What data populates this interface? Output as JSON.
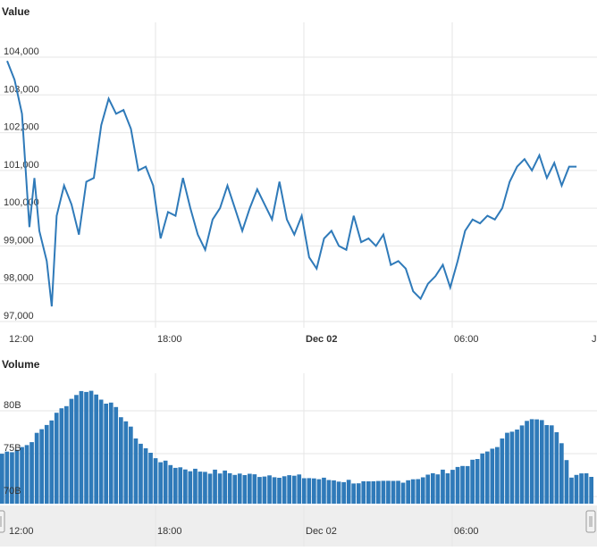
{
  "chart_data": [
    {
      "type": "line",
      "title": "Value",
      "x_unit": "time (Dec 01 12:00 to Dec 02 ~11:00)",
      "x_ticks": [
        "12:00",
        "18:00",
        "Dec 02",
        "06:00",
        "J"
      ],
      "x_tick_bold": [
        false,
        false,
        true,
        false,
        false
      ],
      "y_ticks": [
        "97,000",
        "98,000",
        "99,000",
        "100,000",
        "101,000",
        "102,000",
        "103,000",
        "104,000"
      ],
      "ylim": [
        97000,
        104000
      ],
      "grid": true,
      "color": "#2f7ab9",
      "series": [
        {
          "x_hours": [
            0,
            0.3,
            0.6,
            0.9,
            1.1,
            1.3,
            1.6,
            1.8,
            2.0,
            2.3,
            2.6,
            2.9,
            3.2,
            3.5,
            3.8,
            4.1,
            4.4,
            4.7,
            5.0,
            5.3,
            5.6,
            5.9,
            6.2,
            6.5,
            6.8,
            7.1,
            7.4,
            7.7,
            8.0,
            8.3,
            8.6,
            8.9,
            9.2,
            9.5,
            9.8,
            10.1,
            10.4,
            10.7,
            11.0,
            11.3,
            11.6,
            11.9,
            12.2,
            12.5,
            12.8,
            13.1,
            13.4,
            13.7,
            14.0,
            14.3,
            14.6,
            14.9,
            15.2,
            15.5,
            15.8,
            16.1,
            16.4,
            16.7,
            17.0,
            17.3,
            17.6,
            17.9,
            18.2,
            18.5,
            18.8,
            19.1,
            19.4,
            19.7,
            20.0,
            20.3,
            20.6,
            20.9,
            21.2,
            21.5,
            21.8,
            22.1,
            22.4,
            22.7,
            23.0
          ],
          "values": [
            103900,
            103400,
            102500,
            99500,
            100800,
            99400,
            98600,
            97400,
            99800,
            100600,
            100100,
            99300,
            100700,
            100800,
            102200,
            102900,
            102500,
            102600,
            102100,
            101000,
            101100,
            100600,
            99200,
            99900,
            99800,
            100800,
            100000,
            99300,
            98900,
            99700,
            100000,
            100600,
            100000,
            99400,
            100000,
            100500,
            100100,
            99700,
            100700,
            99700,
            99300,
            99800,
            98700,
            98400,
            99200,
            99400,
            99000,
            98900,
            99800,
            99100,
            99200,
            99000,
            99300,
            98500,
            98600,
            98400,
            97800,
            97600,
            98000,
            98200,
            98500,
            97900,
            98600,
            99400,
            99700,
            99600,
            99800,
            99700,
            100000,
            100700,
            101100,
            101300,
            101000,
            101400,
            100800,
            101200,
            100600,
            101100,
            101100
          ]
        }
      ]
    },
    {
      "type": "bar",
      "title": "Volume",
      "y_ticks": [
        "70B",
        "75B",
        "80B"
      ],
      "ylim": [
        70,
        85
      ],
      "y_unit": "B",
      "grid": true,
      "color": "#2f7ab9",
      "x_hours_start": 0,
      "x_hours_step": 0.2,
      "envelope_hours": [
        0,
        1,
        2,
        3,
        3.5,
        4,
        4.5,
        5,
        5.5,
        6,
        6.5,
        7,
        7.5,
        8,
        9,
        10,
        11,
        12,
        13,
        14,
        15,
        16,
        17,
        18,
        19,
        20,
        20.5,
        21,
        21.5,
        22,
        22.5,
        23
      ],
      "envelope_values": [
        75,
        76,
        79,
        82,
        82.5,
        81.5,
        80.5,
        78.8,
        76.5,
        75,
        74,
        73.5,
        73.2,
        73,
        72.8,
        72.5,
        72.5,
        72.3,
        72,
        71.8,
        71.5,
        71.8,
        72.3,
        73,
        74,
        76,
        77.5,
        78.5,
        79,
        78.5,
        77.5,
        72.5
      ]
    }
  ],
  "navigator": {
    "x_ticks": [
      "12:00",
      "18:00",
      "Dec 02",
      "06:00"
    ]
  }
}
